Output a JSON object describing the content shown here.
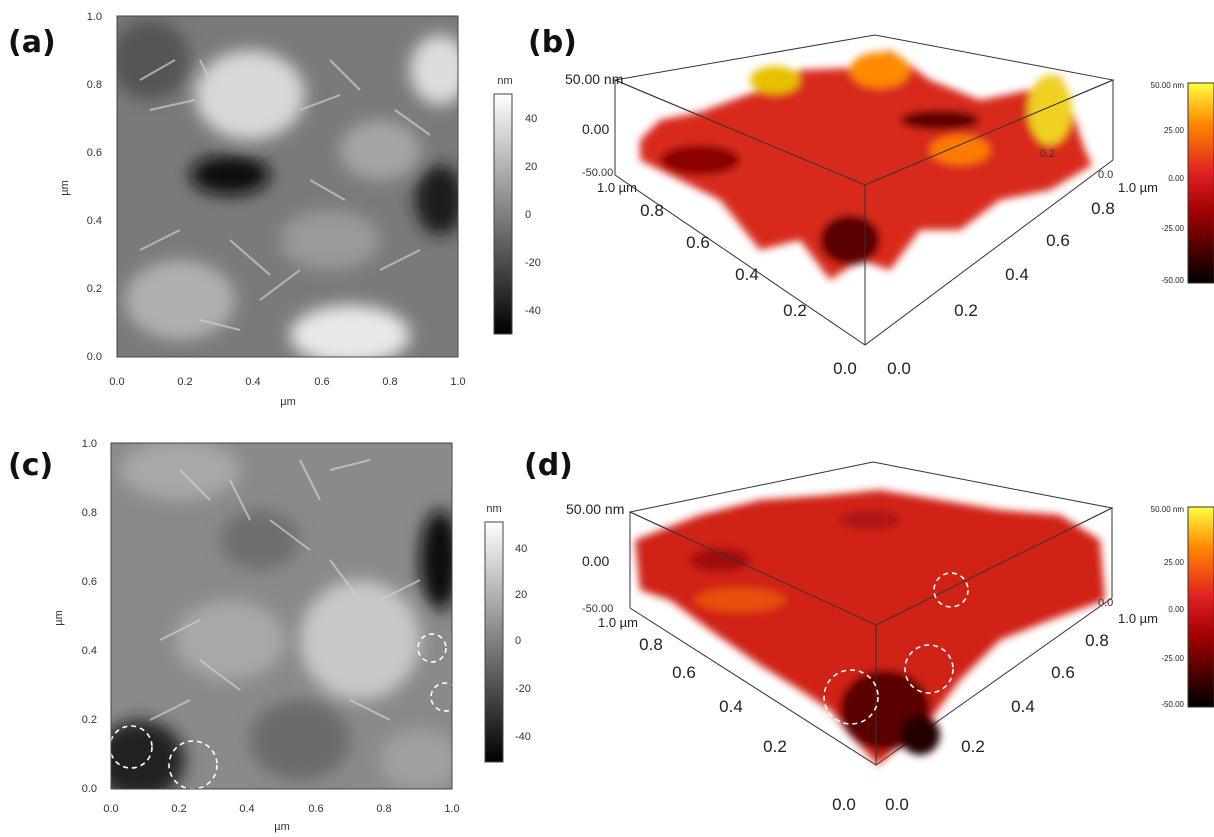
{
  "panels": {
    "a": {
      "label": "(a)"
    },
    "b": {
      "label": "(b)"
    },
    "c": {
      "label": "(c)"
    },
    "d": {
      "label": "(d)"
    }
  },
  "chart_data": [
    {
      "id": "a",
      "type": "heatmap",
      "xlabel": "µm",
      "ylabel": "µm",
      "xlim": [
        0,
        1
      ],
      "ylim": [
        0,
        1
      ],
      "x_ticks": [
        "0.0",
        "0.2",
        "0.4",
        "0.6",
        "0.8",
        "1.0"
      ],
      "y_ticks": [
        "0.0",
        "0.2",
        "0.4",
        "0.6",
        "0.8",
        "1.0"
      ],
      "colorbar": {
        "unit": "nm",
        "ticks": [
          "40",
          "20",
          "0",
          "-20",
          "-40"
        ],
        "range": [
          -50,
          50
        ],
        "colormap": "grayscale"
      }
    },
    {
      "id": "b",
      "type": "surface3d",
      "z_top": "50.00 nm",
      "z_mid": "0.00",
      "z_bot": "-50.00",
      "left_axis_ticks": [
        "1.0 µm",
        "0.8",
        "0.6",
        "0.4",
        "0.2",
        "0.0"
      ],
      "right_axis_ticks": [
        "1.0 µm",
        "0.8",
        "0.6",
        "0.4",
        "0.2",
        "0.0"
      ],
      "back_right_ticks": [
        "0.0",
        "0.2"
      ],
      "colorbar": {
        "ticks": [
          "50.00 nm",
          "25.00",
          "0.00",
          "-25.00",
          "-50.00"
        ],
        "range": [
          -50,
          50
        ],
        "colormap": "red-yellow"
      }
    },
    {
      "id": "c",
      "type": "heatmap",
      "xlabel": "µm",
      "ylabel": "µm",
      "xlim": [
        0,
        1
      ],
      "ylim": [
        0,
        1
      ],
      "x_ticks": [
        "0.0",
        "0.2",
        "0.4",
        "0.6",
        "0.8",
        "1.0"
      ],
      "y_ticks": [
        "0.0",
        "0.2",
        "0.4",
        "0.6",
        "0.8",
        "1.0"
      ],
      "colorbar": {
        "unit": "nm",
        "ticks": [
          "40",
          "20",
          "0",
          "-20",
          "-40"
        ],
        "range": [
          -50,
          50
        ],
        "colormap": "grayscale"
      },
      "marked_regions": [
        {
          "x": 0.05,
          "y": 0.15
        },
        {
          "x": 0.24,
          "y": 0.07
        },
        {
          "x": 0.96,
          "y": 0.4
        },
        {
          "x": 0.99,
          "y": 0.26
        }
      ]
    },
    {
      "id": "d",
      "type": "surface3d",
      "z_top": "50.00 nm",
      "z_mid": "0.00",
      "z_bot": "-50.00",
      "left_axis_ticks": [
        "1.0 µm",
        "0.8",
        "0.6",
        "0.4",
        "0.2",
        "0.0"
      ],
      "right_axis_ticks": [
        "1.0 µm",
        "0.8",
        "0.6",
        "0.4",
        "0.2",
        "0.0"
      ],
      "back_right_ticks": [
        "0.0"
      ],
      "colorbar": {
        "ticks": [
          "50.00 nm",
          "25.00",
          "0.00",
          "-25.00",
          "-50.00"
        ],
        "range": [
          -50,
          50
        ],
        "colormap": "red-yellow"
      }
    }
  ]
}
